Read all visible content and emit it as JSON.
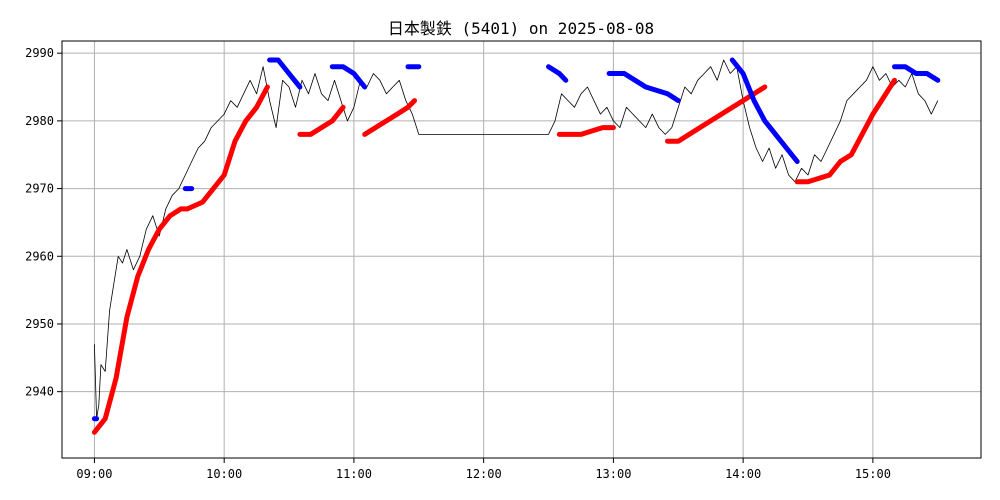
{
  "chart_data": {
    "type": "line",
    "title": "日本製鉄 (5401) on 2025-08-08",
    "xlabel": "",
    "ylabel": "",
    "x_ticks": [
      "09:00",
      "10:00",
      "11:00",
      "12:00",
      "13:00",
      "14:00",
      "15:00"
    ],
    "y_ticks": [
      2940,
      2950,
      2960,
      2970,
      2980,
      2990
    ],
    "xlim": [
      "08:45",
      "15:50"
    ],
    "ylim": [
      2930.2,
      2991.8
    ],
    "grid": true,
    "colors": {
      "price": "#000000",
      "rising": "#ff0000",
      "falling": "#0000ff",
      "grid": "#b0b0b0"
    },
    "price_series": {
      "x": [
        "09:00",
        "09:01",
        "09:02",
        "09:03",
        "09:05",
        "09:07",
        "09:09",
        "09:11",
        "09:13",
        "09:15",
        "09:18",
        "09:21",
        "09:24",
        "09:27",
        "09:30",
        "09:33",
        "09:36",
        "09:39",
        "09:42",
        "09:45",
        "09:48",
        "09:51",
        "09:54",
        "09:57",
        "10:00",
        "10:03",
        "10:06",
        "10:09",
        "10:12",
        "10:15",
        "10:18",
        "10:21",
        "10:24",
        "10:27",
        "10:30",
        "10:33",
        "10:36",
        "10:39",
        "10:42",
        "10:45",
        "10:48",
        "10:51",
        "10:54",
        "10:57",
        "11:00",
        "11:03",
        "11:06",
        "11:09",
        "11:12",
        "11:15",
        "11:18",
        "11:21",
        "11:24",
        "11:27",
        "11:30",
        "12:30",
        "12:33",
        "12:36",
        "12:39",
        "12:42",
        "12:45",
        "12:48",
        "12:51",
        "12:54",
        "12:57",
        "13:00",
        "13:03",
        "13:06",
        "13:09",
        "13:12",
        "13:15",
        "13:18",
        "13:21",
        "13:24",
        "13:27",
        "13:30",
        "13:33",
        "13:36",
        "13:39",
        "13:42",
        "13:45",
        "13:48",
        "13:51",
        "13:54",
        "13:57",
        "14:00",
        "14:03",
        "14:06",
        "14:09",
        "14:12",
        "14:15",
        "14:18",
        "14:21",
        "14:24",
        "14:27",
        "14:30",
        "14:33",
        "14:36",
        "14:39",
        "14:42",
        "14:45",
        "14:48",
        "14:51",
        "14:54",
        "14:57",
        "15:00",
        "15:03",
        "15:06",
        "15:09",
        "15:12",
        "15:15",
        "15:18",
        "15:21",
        "15:24",
        "15:27",
        "15:30"
      ],
      "values": [
        2947,
        2936,
        2938,
        2944,
        2943,
        2952,
        2956,
        2960,
        2959,
        2961,
        2958,
        2960,
        2964,
        2966,
        2963,
        2967,
        2969,
        2970,
        2972,
        2974,
        2976,
        2977,
        2979,
        2980,
        2981,
        2983,
        2982,
        2984,
        2986,
        2984,
        2988,
        2983,
        2979,
        2986,
        2985,
        2982,
        2986,
        2984,
        2987,
        2984,
        2983,
        2986,
        2983,
        2980,
        2982,
        2986,
        2985,
        2987,
        2986,
        2984,
        2985,
        2986,
        2983,
        2981,
        2978,
        2978,
        2980,
        2984,
        2983,
        2982,
        2984,
        2985,
        2983,
        2981,
        2982,
        2980,
        2979,
        2982,
        2981,
        2980,
        2979,
        2981,
        2979,
        2978,
        2979,
        2982,
        2985,
        2984,
        2986,
        2987,
        2988,
        2986,
        2989,
        2987,
        2988,
        2983,
        2979,
        2976,
        2974,
        2976,
        2973,
        2975,
        2972,
        2971,
        2973,
        2972,
        2975,
        2974,
        2976,
        2978,
        2980,
        2983,
        2984,
        2985,
        2986,
        2988,
        2986,
        2987,
        2985,
        2986,
        2985,
        2987,
        2984,
        2983,
        2981,
        2983
      ]
    },
    "series": [
      {
        "trend": "rising",
        "x": [
          "09:00",
          "09:05",
          "09:10",
          "09:15",
          "09:20",
          "09:25",
          "09:30",
          "09:35",
          "09:40",
          "09:43"
        ],
        "values": [
          2934,
          2936,
          2942,
          2951,
          2957,
          2961,
          2964,
          2966,
          2967,
          2967
        ]
      },
      {
        "trend": "rising",
        "x": [
          "09:43",
          "09:50",
          "09:55",
          "10:00",
          "10:05",
          "10:10",
          "10:15",
          "10:20"
        ],
        "values": [
          2967,
          2968,
          2970,
          2972,
          2977,
          2980,
          2982,
          2985
        ]
      },
      {
        "trend": "rising",
        "x": [
          "10:35",
          "10:40",
          "10:45",
          "10:50",
          "10:55"
        ],
        "values": [
          2978,
          2978,
          2979,
          2980,
          2982
        ]
      },
      {
        "trend": "rising",
        "x": [
          "11:05",
          "11:10",
          "11:15",
          "11:20",
          "11:25",
          "11:28"
        ],
        "values": [
          2978,
          2979,
          2980,
          2981,
          2982,
          2983
        ]
      },
      {
        "trend": "rising",
        "x": [
          "12:35",
          "12:45",
          "12:55",
          "13:00"
        ],
        "values": [
          2978,
          2978,
          2979,
          2979
        ]
      },
      {
        "trend": "rising",
        "x": [
          "13:25",
          "13:30",
          "13:40",
          "13:50",
          "14:00",
          "14:05",
          "14:10"
        ],
        "values": [
          2977,
          2977,
          2979,
          2981,
          2983,
          2984,
          2985
        ]
      },
      {
        "trend": "rising",
        "x": [
          "14:25",
          "14:30",
          "14:40",
          "14:45",
          "14:50",
          "15:00",
          "15:10"
        ],
        "values": [
          2971,
          2971,
          2972,
          2974,
          2975,
          2981,
          2986
        ]
      },
      {
        "trend": "falling",
        "x": [
          "09:00",
          "09:01"
        ],
        "values": [
          2936,
          2936
        ]
      },
      {
        "trend": "falling",
        "x": [
          "09:42",
          "09:45"
        ],
        "values": [
          2970,
          2970
        ]
      },
      {
        "trend": "falling",
        "x": [
          "10:21",
          "10:25",
          "10:30",
          "10:35"
        ],
        "values": [
          2989,
          2989,
          2987,
          2985
        ]
      },
      {
        "trend": "falling",
        "x": [
          "10:50",
          "10:55",
          "11:00",
          "11:05"
        ],
        "values": [
          2988,
          2988,
          2987,
          2985
        ]
      },
      {
        "trend": "falling",
        "x": [
          "11:25",
          "11:28",
          "11:30"
        ],
        "values": [
          2988,
          2988,
          2988
        ]
      },
      {
        "trend": "falling",
        "x": [
          "12:30",
          "12:35",
          "12:38"
        ],
        "values": [
          2988,
          2987,
          2986
        ]
      },
      {
        "trend": "falling",
        "x": [
          "12:58",
          "13:05",
          "13:15",
          "13:25",
          "13:30"
        ],
        "values": [
          2987,
          2987,
          2985,
          2984,
          2983
        ]
      },
      {
        "trend": "falling",
        "x": [
          "13:55",
          "14:00",
          "14:05",
          "14:10",
          "14:15",
          "14:20",
          "14:25"
        ],
        "values": [
          2989,
          2987,
          2983,
          2980,
          2978,
          2976,
          2974
        ]
      },
      {
        "trend": "falling",
        "x": [
          "15:10",
          "15:15",
          "15:20",
          "15:25",
          "15:30"
        ],
        "values": [
          2988,
          2988,
          2987,
          2987,
          2986
        ]
      }
    ]
  }
}
